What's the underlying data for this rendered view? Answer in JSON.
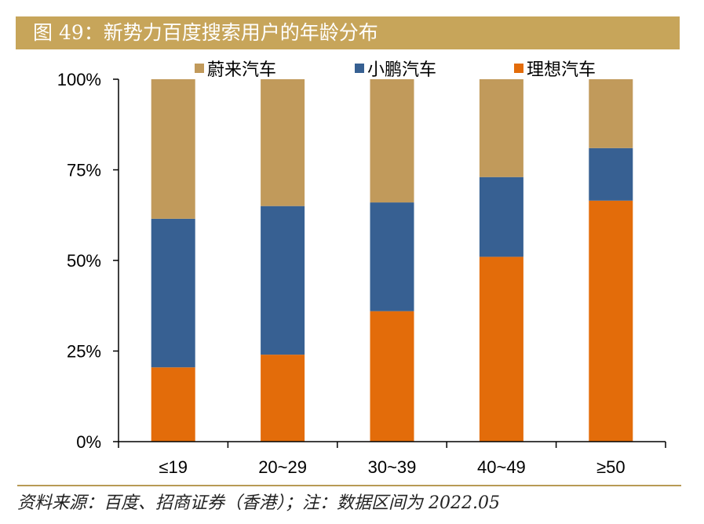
{
  "header": {
    "title": "图 49：新势力百度搜索用户的年龄分布"
  },
  "source": {
    "note": "资料来源：百度、招商证券（香港）；注：数据区间为 2022.05"
  },
  "chart_data": {
    "type": "bar",
    "stacked": true,
    "title": "新势力百度搜索用户的年龄分布",
    "xlabel": "",
    "ylabel": "",
    "ylim": [
      0,
      100
    ],
    "y_ticks": [
      0,
      25,
      50,
      75,
      100
    ],
    "y_tick_labels": [
      "0%",
      "25%",
      "50%",
      "75%",
      "100%"
    ],
    "categories": [
      "≤19",
      "20~29",
      "30~39",
      "40~49",
      "≥50"
    ],
    "legend_position": "top-center",
    "series": [
      {
        "name": "理想汽车",
        "color": "#e36c0a",
        "values": [
          20.5,
          24,
          36,
          51,
          66.5
        ]
      },
      {
        "name": "小鹏汽车",
        "color": "#376092",
        "values": [
          41,
          41,
          30,
          22,
          14.5
        ]
      },
      {
        "name": "蔚来汽车",
        "color": "#c19a5b",
        "values": [
          38.5,
          35,
          34,
          27,
          19
        ]
      }
    ],
    "legend_order": [
      "蔚来汽车",
      "小鹏汽车",
      "理想汽车"
    ]
  }
}
